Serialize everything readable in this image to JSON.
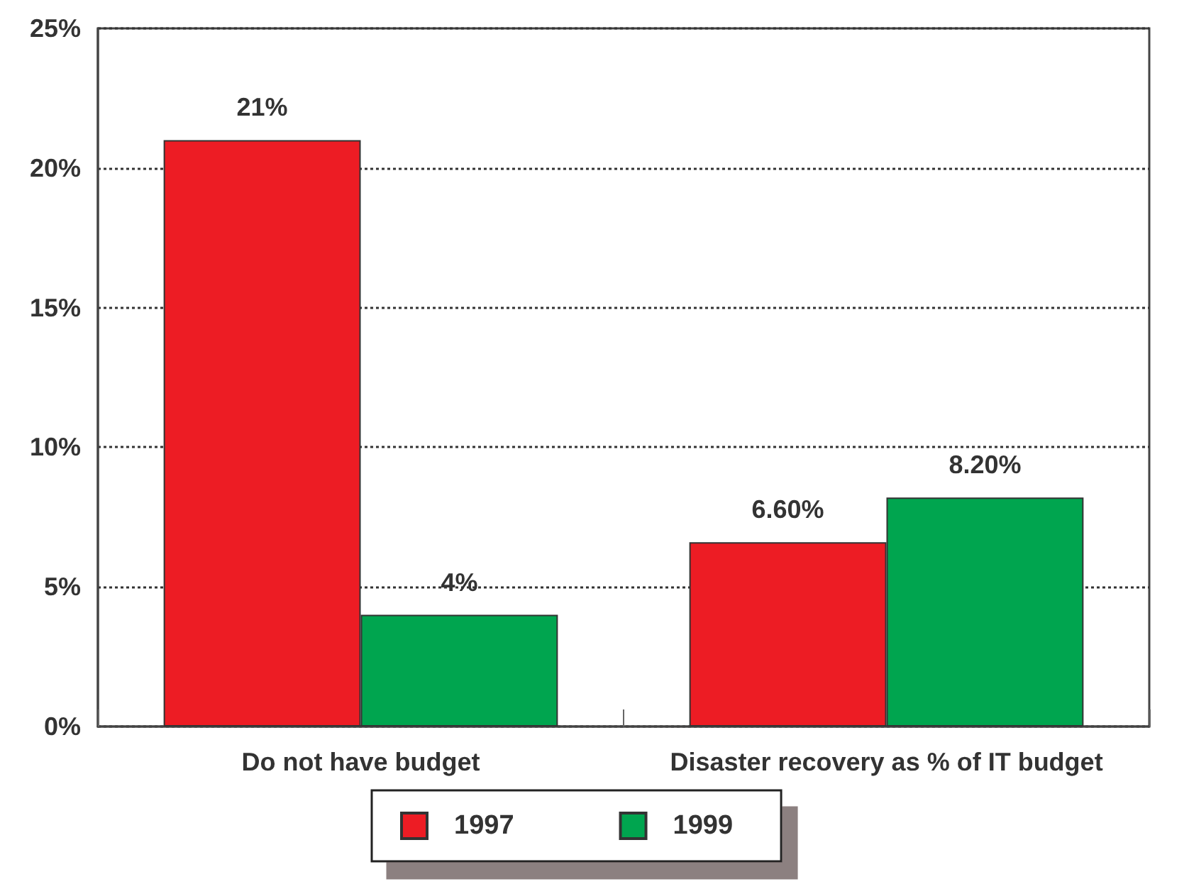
{
  "chart_data": {
    "type": "bar",
    "categories": [
      "Do not have budget",
      "Disaster recovery as % of IT budget"
    ],
    "series": [
      {
        "name": "1997",
        "color": "#ed1c24",
        "values": [
          21,
          6.6
        ],
        "value_labels": [
          "21%",
          "6.60%"
        ]
      },
      {
        "name": "1999",
        "color": "#00a54f",
        "values": [
          4,
          8.2
        ],
        "value_labels": [
          "4%",
          "8.20%"
        ]
      }
    ],
    "ylim": [
      0,
      25
    ],
    "yticks": [
      {
        "value": 0,
        "label": "0%"
      },
      {
        "value": 5,
        "label": "5%"
      },
      {
        "value": 10,
        "label": "10%"
      },
      {
        "value": 15,
        "label": "15%"
      },
      {
        "value": 20,
        "label": "20%"
      },
      {
        "value": 25,
        "label": "25%"
      }
    ],
    "grid": "y",
    "legend": "bottom"
  }
}
